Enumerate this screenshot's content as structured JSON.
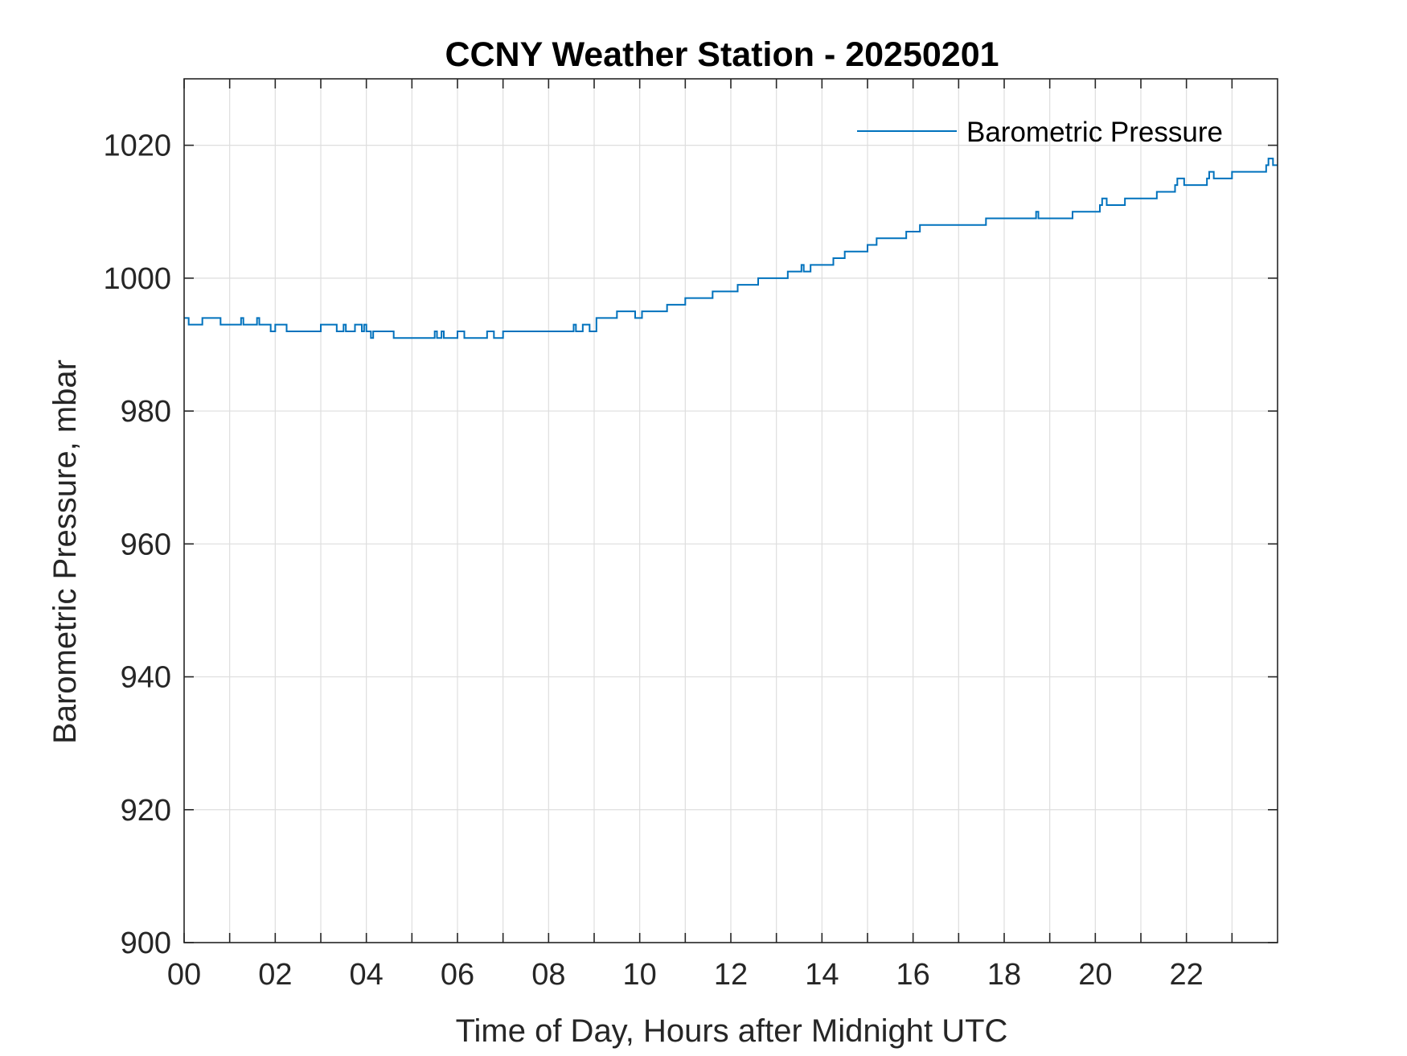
{
  "chart_data": {
    "type": "line",
    "title": "CCNY Weather Station - 20250201",
    "xlabel": "Time of Day, Hours after Midnight UTC",
    "ylabel": "Barometric Pressure, mbar",
    "xlim": [
      0,
      24
    ],
    "ylim": [
      900,
      1030
    ],
    "x_ticks": [
      0,
      2,
      4,
      6,
      8,
      10,
      12,
      14,
      16,
      18,
      20,
      22
    ],
    "x_tick_labels": [
      "00",
      "02",
      "04",
      "06",
      "08",
      "10",
      "12",
      "14",
      "16",
      "18",
      "20",
      "22"
    ],
    "x_minor_ticks": [
      1,
      3,
      5,
      7,
      9,
      11,
      13,
      15,
      17,
      19,
      21,
      23
    ],
    "y_ticks": [
      900,
      920,
      940,
      960,
      980,
      1000,
      1020
    ],
    "y_tick_labels": [
      "900",
      "920",
      "940",
      "960",
      "980",
      "1000",
      "1020"
    ],
    "grid": true,
    "legend_position": "top-right",
    "colors": {
      "series": "#0072BD",
      "axis": "#262626",
      "grid": "#dedede"
    },
    "series": [
      {
        "name": "Barometric Pressure",
        "step": true,
        "x": [
          0,
          0.1,
          0.4,
          0.8,
          1.25,
          1.3,
          1.6,
          1.65,
          1.9,
          2.0,
          2.05,
          2.25,
          3.0,
          3.35,
          3.5,
          3.55,
          3.75,
          3.9,
          3.95,
          4.0,
          4.1,
          4.15,
          4.6,
          5.5,
          5.55,
          5.65,
          5.7,
          5.85,
          6.0,
          6.15,
          6.2,
          6.65,
          6.8,
          7.0,
          8.55,
          8.6,
          8.75,
          8.9,
          9.0,
          9.05,
          9.5,
          9.9,
          10.0,
          10.05,
          10.6,
          11.0,
          11.6,
          12.15,
          12.6,
          13.25,
          13.55,
          13.6,
          13.75,
          14.25,
          14.5,
          15.0,
          15.2,
          15.85,
          16.15,
          17.6,
          18.7,
          18.75,
          18.9,
          19.5,
          20.1,
          20.15,
          20.25,
          20.65,
          21.35,
          21.75,
          21.8,
          21.95,
          22.45,
          22.5,
          22.6,
          23.0,
          23.75,
          23.8,
          23.9
        ],
        "y": [
          994,
          993,
          994,
          993,
          994,
          993,
          994,
          993,
          992,
          993,
          993,
          992,
          993,
          992,
          993,
          992,
          993,
          992,
          993,
          992,
          991,
          992,
          991,
          992,
          991,
          992,
          991,
          991,
          992,
          991,
          991,
          992,
          991,
          992,
          993,
          992,
          993,
          992,
          992,
          994,
          995,
          994,
          994,
          995,
          996,
          997,
          998,
          999,
          1000,
          1001,
          1002,
          1001,
          1002,
          1003,
          1004,
          1005,
          1006,
          1007,
          1008,
          1009,
          1010,
          1009,
          1009,
          1010,
          1011,
          1012,
          1011,
          1012,
          1013,
          1014,
          1015,
          1014,
          1015,
          1016,
          1015,
          1016,
          1017,
          1018,
          1017
        ]
      }
    ]
  }
}
